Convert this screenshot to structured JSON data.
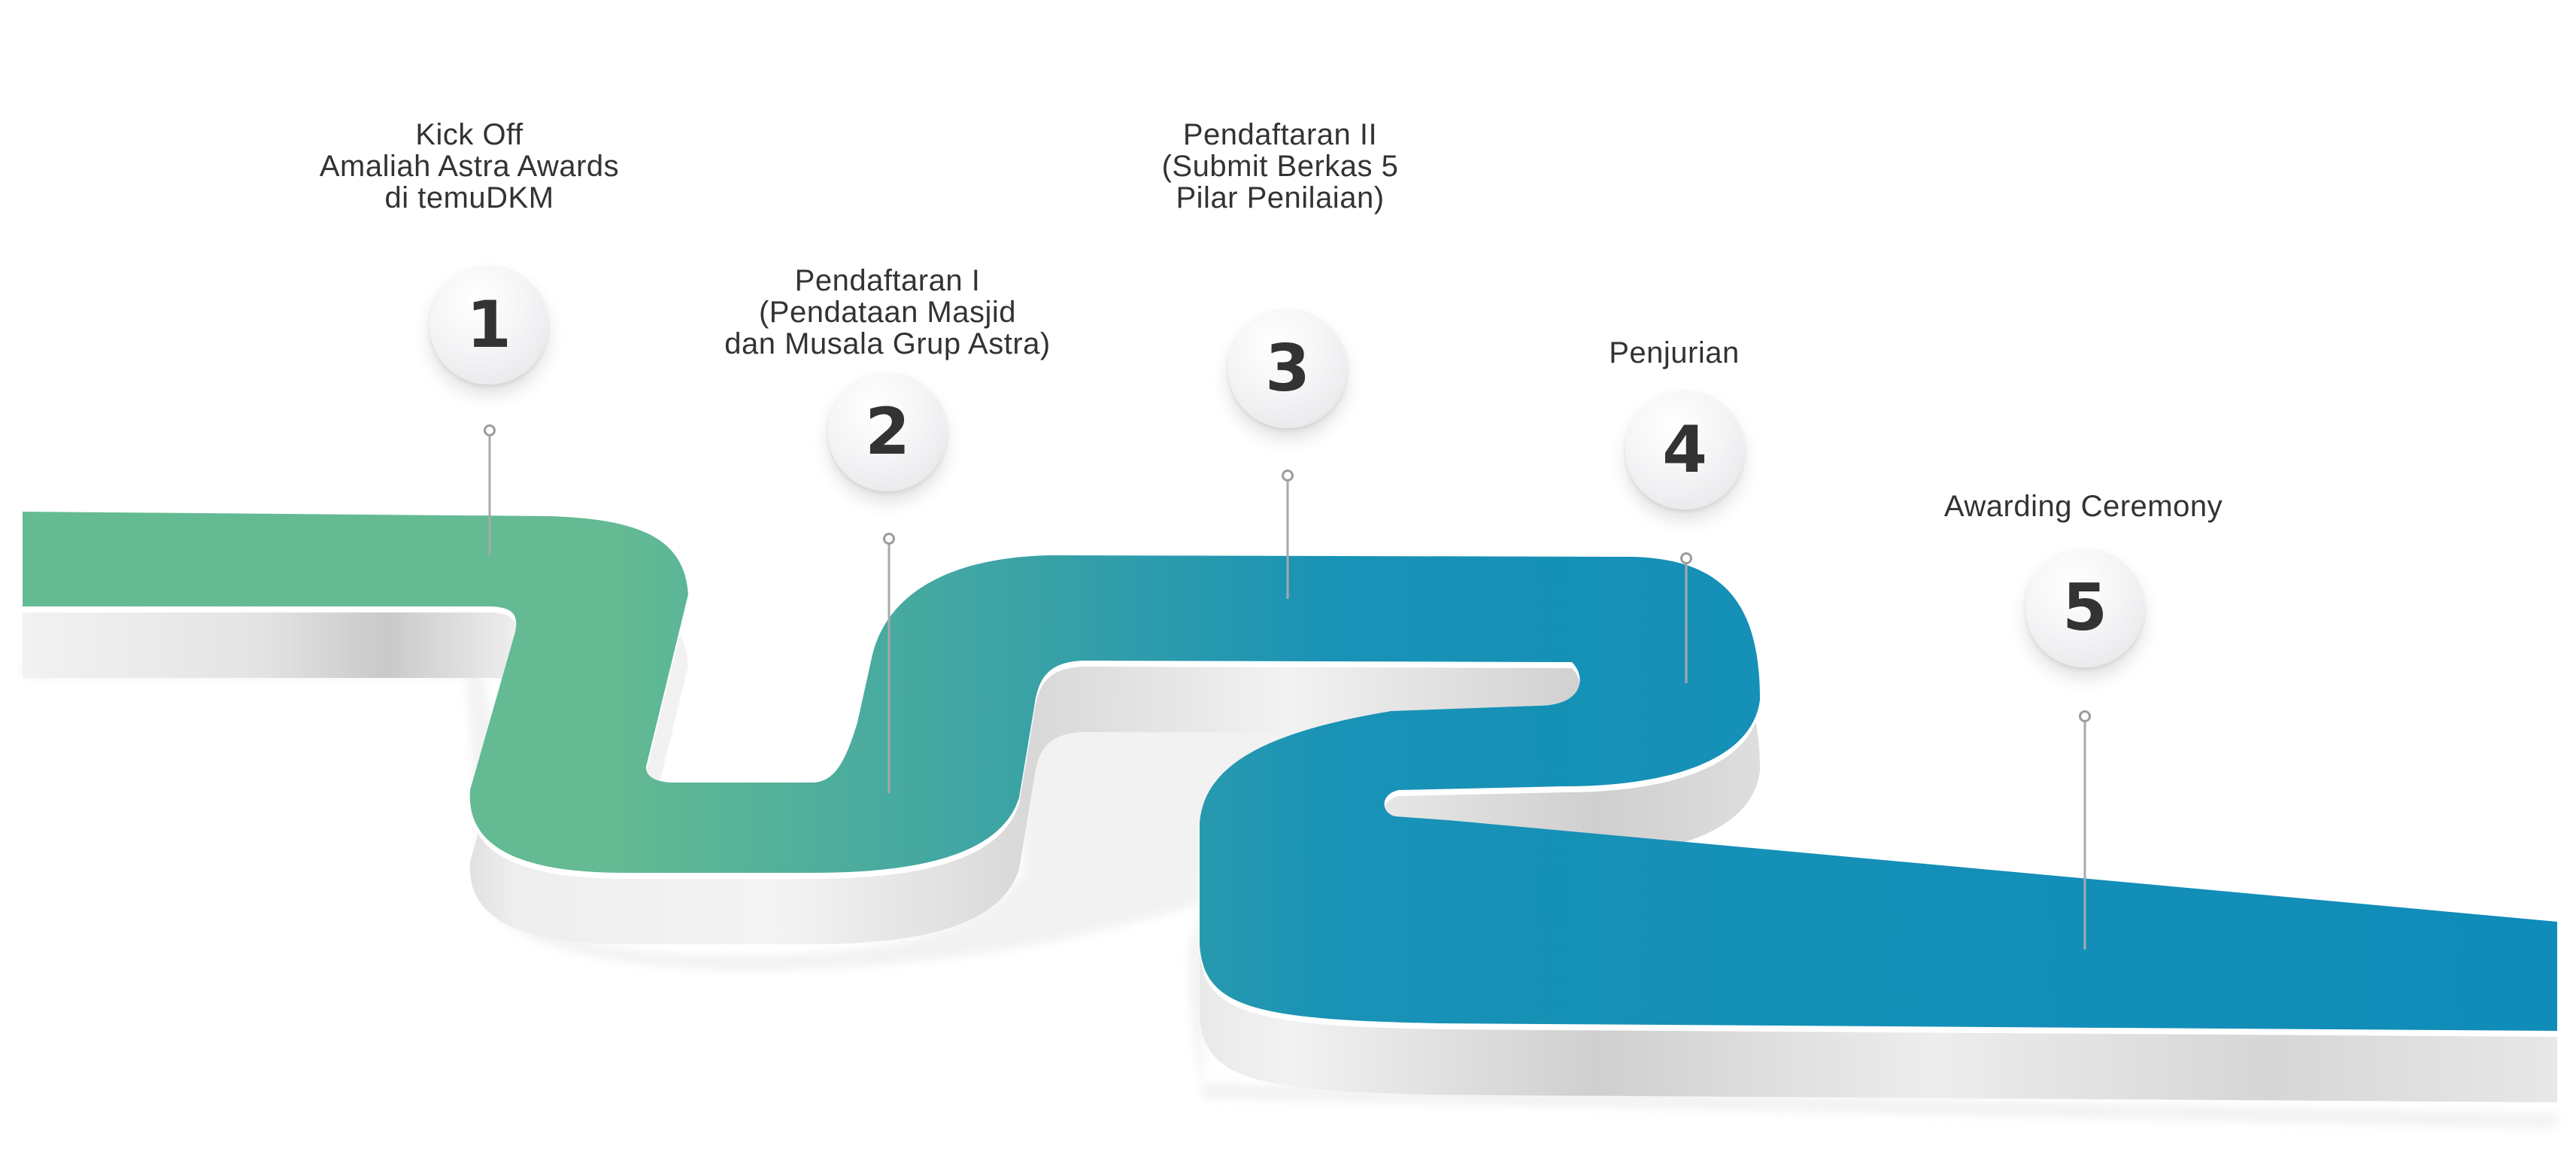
{
  "colors": {
    "road_start": "#65bb92",
    "road_mid": "#3aa2a6",
    "road_end": "#0f8cb9",
    "wall_light": "#f1f1f1",
    "wall_dark": "#cdcdcd",
    "text": "#333333"
  },
  "steps": [
    {
      "number": "1",
      "label": "Kick Off\nAmaliah Astra Awards\ndi temuDKM"
    },
    {
      "number": "2",
      "label": "Pendaftaran I\n(Pendataan Masjid\ndan Musala Grup Astra)"
    },
    {
      "number": "3",
      "label": "Pendaftaran II\n(Submit Berkas 5\nPilar Penilaian)"
    },
    {
      "number": "4",
      "label": "Penjurian"
    },
    {
      "number": "5",
      "label": "Awarding Ceremony"
    }
  ]
}
